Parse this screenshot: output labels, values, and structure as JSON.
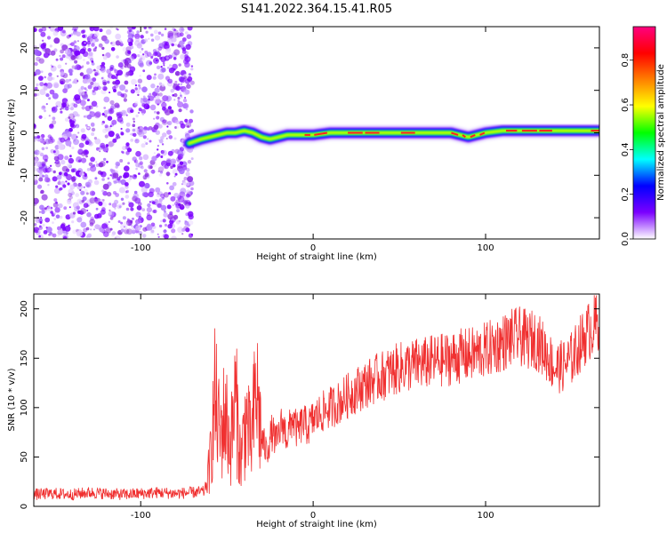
{
  "title": "S141.2022.364.15.41.R05",
  "chart_data": [
    {
      "type": "heatmap",
      "xlabel": "Height of straight line (km)",
      "ylabel": "Frequency (Hz)",
      "xlim": [
        -162,
        166
      ],
      "ylim": [
        -25,
        25
      ],
      "x_ticks": [
        -100,
        0,
        100
      ],
      "y_ticks": [
        -20,
        -10,
        0,
        10,
        20
      ],
      "noise_region_x": [
        -162,
        -70
      ],
      "ridge": {
        "x": [
          -72,
          -65,
          -60,
          -55,
          -50,
          -45,
          -40,
          -35,
          -30,
          -25,
          -20,
          -15,
          -10,
          -5,
          0,
          10,
          20,
          30,
          40,
          50,
          60,
          70,
          80,
          85,
          90,
          95,
          100,
          110,
          120,
          130,
          140,
          150,
          160,
          166
        ],
        "y": [
          -2.5,
          -1.5,
          -1.0,
          -0.5,
          0.0,
          0.0,
          0.5,
          0.0,
          -1.0,
          -1.5,
          -1.0,
          -0.5,
          -0.5,
          -0.5,
          -0.5,
          0.0,
          0.0,
          0.0,
          0.0,
          0.0,
          0.0,
          0.0,
          0.0,
          -0.5,
          -1.0,
          -0.5,
          0.0,
          0.5,
          0.5,
          0.5,
          0.5,
          0.5,
          0.5,
          0.5
        ]
      },
      "colorbar": {
        "label": "Normalized spectral amplitude",
        "ticks": [
          "0.0",
          "0.2",
          "0.4",
          "0.6",
          "0.8"
        ],
        "colors": [
          "#ffffff",
          "#7b00ff",
          "#0000ff",
          "#00ffff",
          "#00ff00",
          "#ffff00",
          "#ff8000",
          "#ff0000",
          "#ff0080"
        ]
      }
    },
    {
      "type": "line",
      "xlabel": "Height of straight line (km)",
      "ylabel": "SNR (10 * v/v)",
      "xlim": [
        -162,
        166
      ],
      "ylim": [
        0,
        215
      ],
      "x_ticks": [
        -100,
        0,
        100
      ],
      "y_ticks": [
        0,
        50,
        100,
        150,
        200
      ],
      "color": "#f03030",
      "series": [
        {
          "x": [
            -162,
            -150,
            -140,
            -130,
            -120,
            -110,
            -100,
            -90,
            -80,
            -70,
            -63,
            -60,
            -57,
            -54,
            -51,
            -48,
            -45,
            -42,
            -39,
            -36,
            -33,
            -30,
            -27,
            -24,
            -21,
            -18,
            -15,
            -12,
            -9,
            -6,
            -3,
            0,
            5,
            10,
            15,
            20,
            25,
            30,
            35,
            40,
            45,
            50,
            55,
            60,
            65,
            70,
            75,
            80,
            85,
            90,
            95,
            100,
            105,
            110,
            115,
            120,
            125,
            128,
            131,
            134,
            137,
            140,
            145,
            150,
            155,
            160,
            166
          ],
          "values": [
            12,
            13,
            12,
            14,
            13,
            12,
            13,
            14,
            13,
            14,
            15,
            40,
            110,
            70,
            95,
            60,
            110,
            45,
            90,
            60,
            120,
            70,
            55,
            75,
            65,
            85,
            70,
            90,
            75,
            85,
            80,
            88,
            95,
            100,
            105,
            112,
            118,
            123,
            128,
            132,
            136,
            140,
            142,
            144,
            145,
            147,
            148,
            150,
            152,
            153,
            155,
            158,
            162,
            166,
            170,
            172,
            168,
            170,
            165,
            158,
            150,
            140,
            142,
            150,
            165,
            178,
            188
          ]
        }
      ]
    }
  ]
}
